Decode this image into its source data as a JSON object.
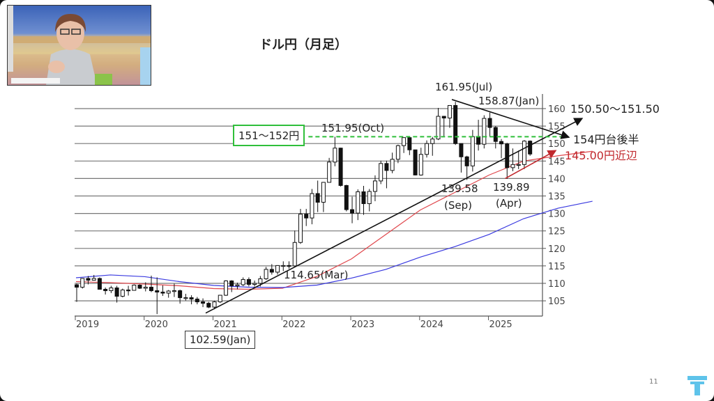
{
  "slide": {
    "title": "ドル円（月足）",
    "page_number": "11",
    "logo": "T",
    "logo_color": "#5ec3ea"
  },
  "webcam": {
    "description_icon": "presenter-video"
  },
  "chart_data": {
    "type": "candlestick",
    "title": "ドル円（月足）",
    "start": "2019-01",
    "ylim": [
      100,
      164
    ],
    "yticks": [
      "105",
      "110",
      "115",
      "120",
      "125",
      "130",
      "135",
      "140",
      "145",
      "150",
      "155",
      "160"
    ],
    "xticks": [
      "2019",
      "2020",
      "2021",
      "2022",
      "2023",
      "2024",
      "2025"
    ],
    "ohlc": [
      [
        109.6,
        109.9,
        104.7,
        108.9
      ],
      [
        108.9,
        111.5,
        108.5,
        111.4
      ],
      [
        111.4,
        112.1,
        109.7,
        110.9
      ],
      [
        110.9,
        112.4,
        110.8,
        111.4
      ],
      [
        111.4,
        111.7,
        108.3,
        108.3
      ],
      [
        108.3,
        108.8,
        106.8,
        107.9
      ],
      [
        107.9,
        109.3,
        107.2,
        108.7
      ],
      [
        108.7,
        109.3,
        104.5,
        106.3
      ],
      [
        106.3,
        108.5,
        106.0,
        108.1
      ],
      [
        108.1,
        109.3,
        106.5,
        108.0
      ],
      [
        108.0,
        109.7,
        107.9,
        109.5
      ],
      [
        109.5,
        109.7,
        108.4,
        108.6
      ],
      [
        108.6,
        110.3,
        107.7,
        108.9
      ],
      [
        108.9,
        112.2,
        107.5,
        107.9
      ],
      [
        107.9,
        111.7,
        101.2,
        107.5
      ],
      [
        107.5,
        109.4,
        106.4,
        107.2
      ],
      [
        107.2,
        108.1,
        105.9,
        107.8
      ],
      [
        107.8,
        109.9,
        106.1,
        107.9
      ],
      [
        107.9,
        108.2,
        104.2,
        105.9
      ],
      [
        105.9,
        107.0,
        105.1,
        105.9
      ],
      [
        105.9,
        106.6,
        104.0,
        105.5
      ],
      [
        105.5,
        106.1,
        104.0,
        104.7
      ],
      [
        104.7,
        105.7,
        103.2,
        104.3
      ],
      [
        104.3,
        104.7,
        102.9,
        103.2
      ],
      [
        103.2,
        105.0,
        102.59,
        104.7
      ],
      [
        104.7,
        106.7,
        104.4,
        106.6
      ],
      [
        106.6,
        110.9,
        106.4,
        110.7
      ],
      [
        110.7,
        110.9,
        107.5,
        109.3
      ],
      [
        109.3,
        110.2,
        108.3,
        109.6
      ],
      [
        109.6,
        111.7,
        109.2,
        111.1
      ],
      [
        111.1,
        111.7,
        109.1,
        109.7
      ],
      [
        109.7,
        110.8,
        109.1,
        110.0
      ],
      [
        110.0,
        112.1,
        109.1,
        111.3
      ],
      [
        111.3,
        114.7,
        111.0,
        114.0
      ],
      [
        114.0,
        115.5,
        112.5,
        113.2
      ],
      [
        113.2,
        115.2,
        112.5,
        115.1
      ],
      [
        115.1,
        116.3,
        113.5,
        115.1
      ],
      [
        115.1,
        116.3,
        114.2,
        115.0
      ],
      [
        115.0,
        125.1,
        114.65,
        121.7
      ],
      [
        121.7,
        131.3,
        121.3,
        129.8
      ],
      [
        129.8,
        131.3,
        126.4,
        128.7
      ],
      [
        128.7,
        137.0,
        126.9,
        135.7
      ],
      [
        135.7,
        139.4,
        130.4,
        133.2
      ],
      [
        133.2,
        139.0,
        130.4,
        138.9
      ],
      [
        138.9,
        145.9,
        138.9,
        144.7
      ],
      [
        144.7,
        151.95,
        143.5,
        148.7
      ],
      [
        148.7,
        148.8,
        137.7,
        138.0
      ],
      [
        138.0,
        138.2,
        130.6,
        131.1
      ],
      [
        131.1,
        134.8,
        127.2,
        130.1
      ],
      [
        130.1,
        136.9,
        128.1,
        136.2
      ],
      [
        136.2,
        137.9,
        129.6,
        132.8
      ],
      [
        132.8,
        137.0,
        130.6,
        136.3
      ],
      [
        136.3,
        140.9,
        133.5,
        139.3
      ],
      [
        139.3,
        145.1,
        138.4,
        144.3
      ],
      [
        144.3,
        145.1,
        137.2,
        142.3
      ],
      [
        142.3,
        147.4,
        141.5,
        145.5
      ],
      [
        145.5,
        149.7,
        144.4,
        149.4
      ],
      [
        149.4,
        151.7,
        147.3,
        151.7
      ],
      [
        151.7,
        151.9,
        146.7,
        148.2
      ],
      [
        148.2,
        148.0,
        140.9,
        141.0
      ],
      [
        141.0,
        148.8,
        140.8,
        146.9
      ],
      [
        146.9,
        150.9,
        146.0,
        150.0
      ],
      [
        150.0,
        151.9,
        146.5,
        151.3
      ],
      [
        151.3,
        160.2,
        151.0,
        157.8
      ],
      [
        157.8,
        157.9,
        151.9,
        157.3
      ],
      [
        157.3,
        161.0,
        154.5,
        160.9
      ],
      [
        160.9,
        161.95,
        149.6,
        150.0
      ],
      [
        150.0,
        150.0,
        141.7,
        146.2
      ],
      [
        146.2,
        146.5,
        139.58,
        143.6
      ],
      [
        143.6,
        153.9,
        142.0,
        152.0
      ],
      [
        152.0,
        156.8,
        148.0,
        149.8
      ],
      [
        149.8,
        158.1,
        148.6,
        157.2
      ],
      [
        157.2,
        158.87,
        151.9,
        154.6
      ],
      [
        154.6,
        155.0,
        148.6,
        150.6
      ],
      [
        150.6,
        151.3,
        145.8,
        149.9
      ],
      [
        149.9,
        150.2,
        139.89,
        143.1
      ],
      [
        143.1,
        148.6,
        142.1,
        144.0
      ],
      [
        144.0,
        148.0,
        142.7,
        144.0
      ],
      [
        144.0,
        151.0,
        142.7,
        150.7
      ],
      [
        150.7,
        150.9,
        146.5,
        147.0
      ]
    ],
    "moving_averages": [
      {
        "name": "short-ma",
        "color": "#e0474c",
        "points": [
          [
            0,
            110.5
          ],
          [
            6,
            110.2
          ],
          [
            12,
            109.8
          ],
          [
            18,
            109.3
          ],
          [
            24,
            108.5
          ],
          [
            30,
            108.3
          ],
          [
            36,
            108.6
          ],
          [
            42,
            112
          ],
          [
            48,
            117
          ],
          [
            54,
            124
          ],
          [
            60,
            131
          ],
          [
            66,
            136
          ],
          [
            72,
            141
          ],
          [
            78,
            145
          ],
          [
            84,
            146.5
          ],
          [
            90,
            147.8
          ]
        ]
      },
      {
        "name": "long-ma",
        "color": "#3a3ae0",
        "points": [
          [
            0,
            111.6
          ],
          [
            6,
            112.4
          ],
          [
            12,
            111.9
          ],
          [
            18,
            110.5
          ],
          [
            24,
            109.4
          ],
          [
            30,
            108.9
          ],
          [
            36,
            108.8
          ],
          [
            42,
            109.5
          ],
          [
            48,
            111.5
          ],
          [
            54,
            114
          ],
          [
            60,
            117.5
          ],
          [
            66,
            120.5
          ],
          [
            72,
            124
          ],
          [
            78,
            128.5
          ],
          [
            84,
            131.5
          ],
          [
            90,
            133.5
          ]
        ]
      }
    ],
    "trendlines": [
      {
        "name": "support-uptrend",
        "color": "#111111",
        "from": [
          22.6,
          101.5
        ],
        "to": [
          88.2,
          157.2
        ],
        "arrow": true
      },
      {
        "name": "resistance-downtrend",
        "color": "#111111",
        "from": [
          65.5,
          162.6
        ],
        "to": [
          85.9,
          151.8
        ],
        "arrow": true
      },
      {
        "name": "red-uptrend",
        "color": "#c0282d",
        "from": [
          74.8,
          140
        ],
        "to": [
          83.6,
          148
        ],
        "arrow": true
      },
      {
        "name": "resistance-zone",
        "color": "#2fbf3a",
        "from": [
          40.5,
          151.95
        ],
        "to": [
          84.5,
          151.95
        ],
        "dashed": true
      }
    ],
    "annotations": {
      "high_jul": "161.95(Jul)",
      "high_jan": "158.87(Jan)",
      "target_range": "150.50～151.50",
      "target_154": "154円台後半",
      "target_145": "145.00円近辺",
      "zone_label": "151～152円",
      "high_oct": "151.95(Oct)",
      "low_sep_value": "139.58",
      "low_sep_month": "(Sep)",
      "low_apr_value": "139.89",
      "low_apr_month": "(Apr)",
      "low_mar": "114.65(Mar)",
      "low_jan": "102.59(Jan)"
    }
  }
}
